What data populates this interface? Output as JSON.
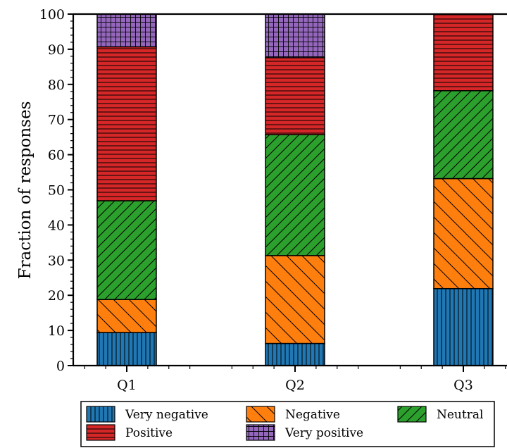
{
  "chart_data": {
    "type": "bar",
    "stacked": true,
    "categories": [
      "Q1",
      "Q2",
      "Q3"
    ],
    "ylabel": "Fraction of responses",
    "ylim": [
      0,
      100
    ],
    "yticks": [
      "0",
      "10",
      "20",
      "30",
      "40",
      "50",
      "60",
      "70",
      "80",
      "90",
      "100"
    ],
    "legend_position": "bottom",
    "series": [
      {
        "name": "Very negative",
        "values": [
          9.4,
          6.3,
          21.9
        ],
        "color": "#1f77b4",
        "pattern": "vertical-lines"
      },
      {
        "name": "Negative",
        "values": [
          9.4,
          25.0,
          31.3
        ],
        "color": "#ff7f0e",
        "pattern": "backslash"
      },
      {
        "name": "Neutral",
        "values": [
          28.1,
          34.4,
          25.0
        ],
        "color": "#2ca02c",
        "pattern": "slash"
      },
      {
        "name": "Positive",
        "values": [
          43.8,
          21.9,
          21.8
        ],
        "color": "#d62728",
        "pattern": "horizontal-lines"
      },
      {
        "name": "Very positive",
        "values": [
          9.3,
          12.4,
          0
        ],
        "color": "#9467bd",
        "pattern": "grid"
      }
    ]
  }
}
